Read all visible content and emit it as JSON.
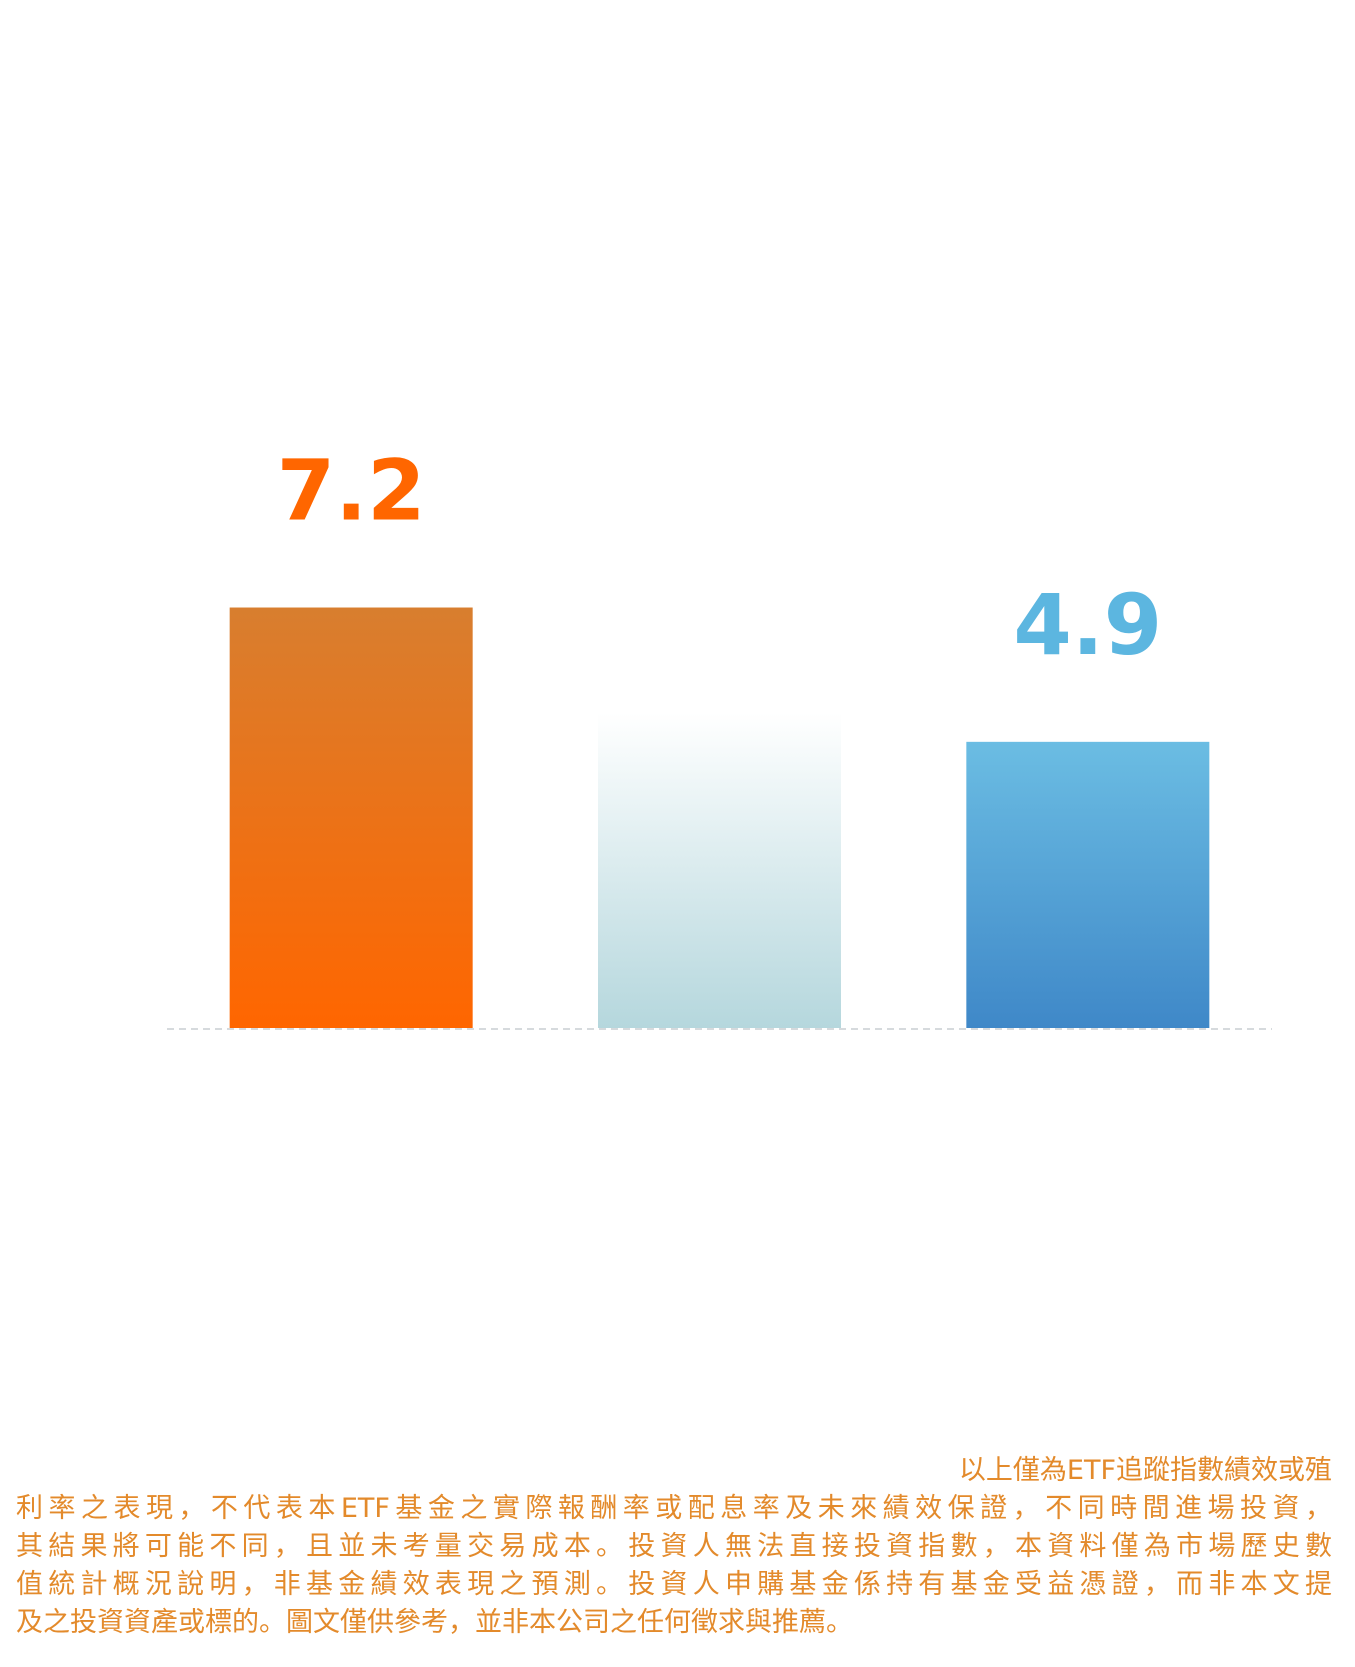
{
  "chart_data": {
    "type": "bar",
    "categories": [
      null,
      null,
      null
    ],
    "values": [
      7.2,
      5.4,
      4.9
    ],
    "value_labels": [
      "7.2",
      null,
      "4.9"
    ],
    "colors": [
      [
        "#d87e2f",
        "#ff6600"
      ],
      [
        "#ffffff",
        "#b5d7dd"
      ],
      [
        "#6bbde3",
        "#3f88c8"
      ]
    ],
    "label_colors": [
      "#ff6600",
      null,
      "#5cb6e0"
    ]
  },
  "disclaimer_lines": [
    "以上僅為ETF追蹤指數績效或殖",
    "利率之表現，不代表本ETF基金之實際報酬率或配息率及未來績效保證，不同時間進場投資，",
    "其結果將可能不同，且並未考量交易成本。投資人無法直接投資指數，本資料僅為市場歷史數",
    "值統計概況說明，非基金績效表現之預測。投資人申購基金係持有基金受益憑證，而非本文提",
    "及之投資資產或標的。圖文僅供參考，並非本公司之任何徵求與推薦。"
  ]
}
